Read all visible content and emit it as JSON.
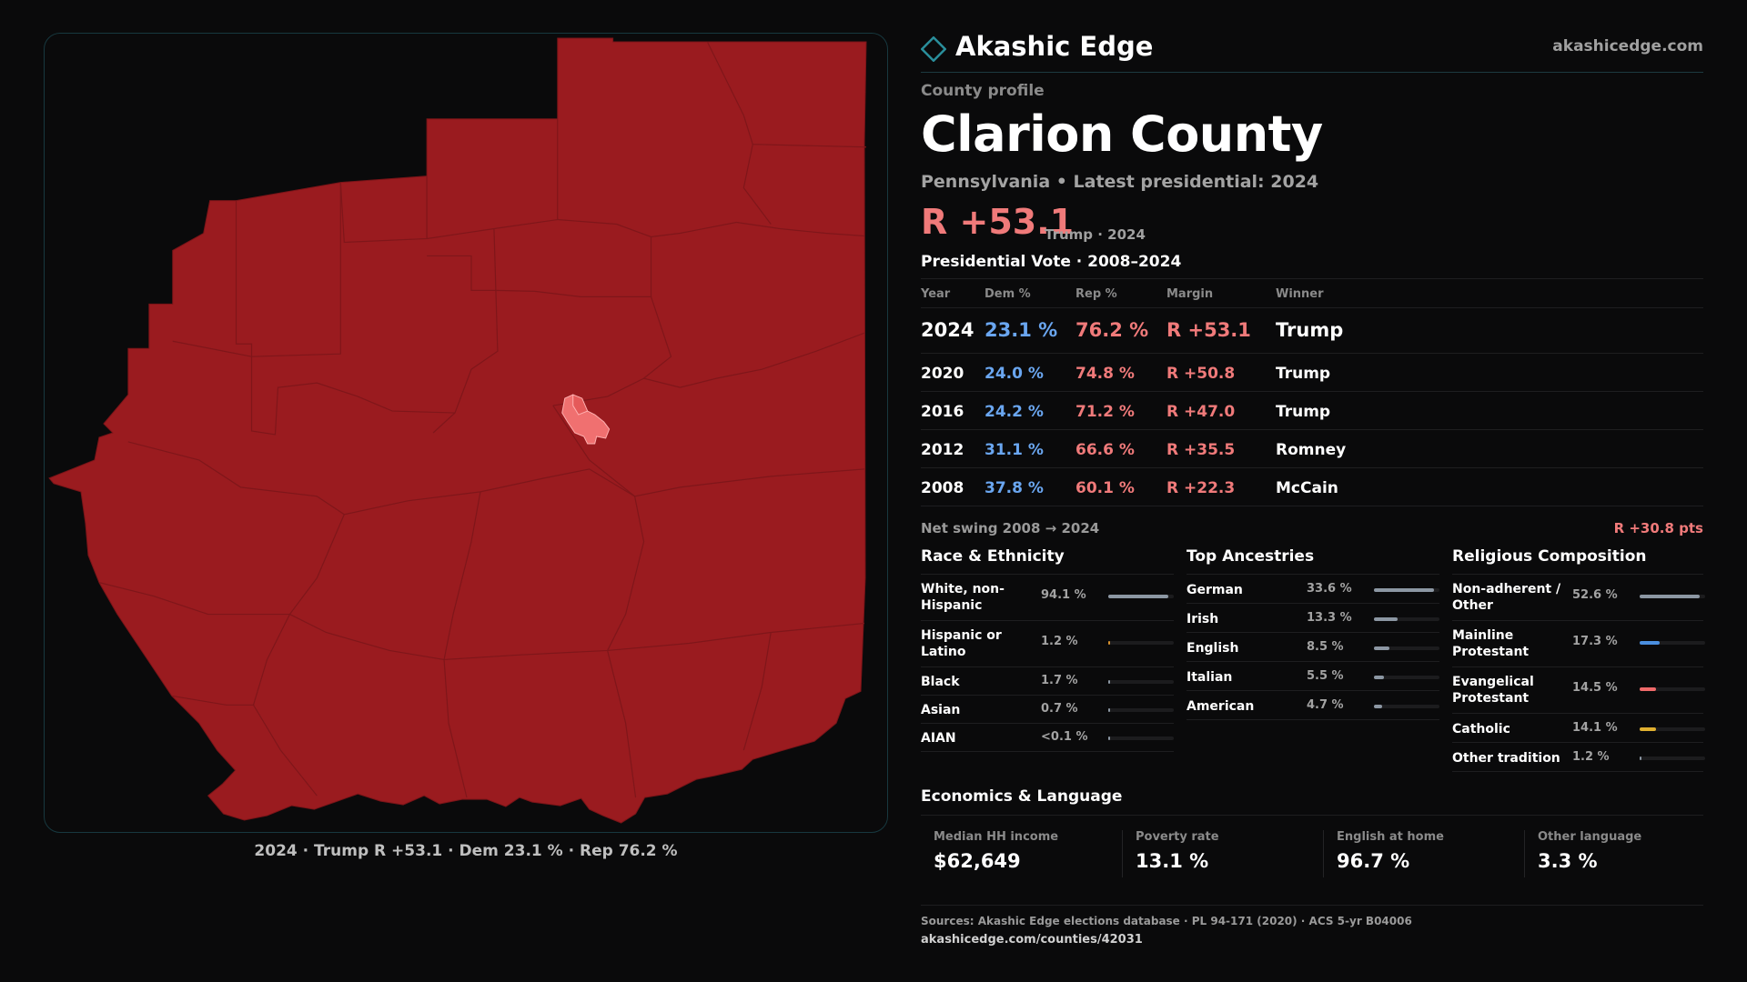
{
  "brand": {
    "name": "Akashic Edge",
    "url": "akashicedge.com"
  },
  "profile": {
    "eyebrow": "County profile",
    "county": "Clarion County",
    "subtitle": "Pennsylvania • Latest presidential: 2024",
    "margin": "R +53.1",
    "margin_note": "Trump · 2024"
  },
  "map": {
    "caption": "2024 · Trump R +53.1 · Dem 23.1 % · Rep 76.2 %",
    "fill_color": "#9a1b1f",
    "highlight_color": "#f07070"
  },
  "presidential": {
    "title": "Presidential Vote · 2008–2024",
    "headers": {
      "year": "Year",
      "dem": "Dem %",
      "rep": "Rep %",
      "margin": "Margin",
      "winner": "Winner"
    },
    "rows": [
      {
        "year": "2024",
        "dem": "23.1 %",
        "rep": "76.2 %",
        "margin": "R +53.1",
        "winner": "Trump"
      },
      {
        "year": "2020",
        "dem": "24.0 %",
        "rep": "74.8 %",
        "margin": "R +50.8",
        "winner": "Trump"
      },
      {
        "year": "2016",
        "dem": "24.2 %",
        "rep": "71.2 %",
        "margin": "R +47.0",
        "winner": "Trump"
      },
      {
        "year": "2012",
        "dem": "31.1 %",
        "rep": "66.6 %",
        "margin": "R +35.5",
        "winner": "Romney"
      },
      {
        "year": "2008",
        "dem": "37.8 %",
        "rep": "60.1 %",
        "margin": "R +22.3",
        "winner": "McCain"
      }
    ]
  },
  "swing": {
    "label": "Net swing 2008 → 2024",
    "value": "R +30.8 pts"
  },
  "race": {
    "title": "Race & Ethnicity",
    "rows": [
      {
        "label": "White, non-Hispanic",
        "pct": "94.1 %",
        "value": 94.1,
        "color": "#8c97a3"
      },
      {
        "label": "Hispanic or Latino",
        "pct": "1.2 %",
        "value": 1.2,
        "color": "#d9922e"
      },
      {
        "label": "Black",
        "pct": "1.7 %",
        "value": 1.7,
        "color": "#8c97a3"
      },
      {
        "label": "Asian",
        "pct": "0.7 %",
        "value": 0.7,
        "color": "#8c97a3"
      },
      {
        "label": "AIAN",
        "pct": "<0.1 %",
        "value": 0.05,
        "color": "#8c97a3"
      }
    ]
  },
  "ancestry": {
    "title": "Top Ancestries",
    "rows": [
      {
        "label": "German",
        "pct": "33.6 %",
        "value": 33.6,
        "color": "#8c97a3"
      },
      {
        "label": "Irish",
        "pct": "13.3 %",
        "value": 13.3,
        "color": "#8c97a3"
      },
      {
        "label": "English",
        "pct": "8.5 %",
        "value": 8.5,
        "color": "#8c97a3"
      },
      {
        "label": "Italian",
        "pct": "5.5 %",
        "value": 5.5,
        "color": "#8c97a3"
      },
      {
        "label": "American",
        "pct": "4.7 %",
        "value": 4.7,
        "color": "#8c97a3"
      }
    ]
  },
  "religion": {
    "title": "Religious Composition",
    "rows": [
      {
        "label": "Non-adherent / Other",
        "pct": "52.6 %",
        "value": 52.6,
        "color": "#8c97a3"
      },
      {
        "label": "Mainline Protestant",
        "pct": "17.3 %",
        "value": 17.3,
        "color": "#4a8fe0"
      },
      {
        "label": "Evangelical Protestant",
        "pct": "14.5 %",
        "value": 14.5,
        "color": "#f06a6a"
      },
      {
        "label": "Catholic",
        "pct": "14.1 %",
        "value": 14.1,
        "color": "#e0b030"
      },
      {
        "label": "Other tradition",
        "pct": "1.2 %",
        "value": 1.2,
        "color": "#8c97a3"
      }
    ]
  },
  "economics": {
    "title": "Economics & Language",
    "items": [
      {
        "label": "Median HH income",
        "value": "$62,649"
      },
      {
        "label": "Poverty rate",
        "value": "13.1 %"
      },
      {
        "label": "English at home",
        "value": "96.7 %"
      },
      {
        "label": "Other language",
        "value": "3.3 %"
      }
    ]
  },
  "sources": {
    "line1": "Sources: Akashic Edge elections database · PL 94-171 (2020) · ACS 5-yr B04006",
    "line2": "akashicedge.com/counties/42031"
  },
  "colors": {
    "accent": "#2a8f9c",
    "dem": "#6aa6f0",
    "rep": "#f07a7a"
  }
}
